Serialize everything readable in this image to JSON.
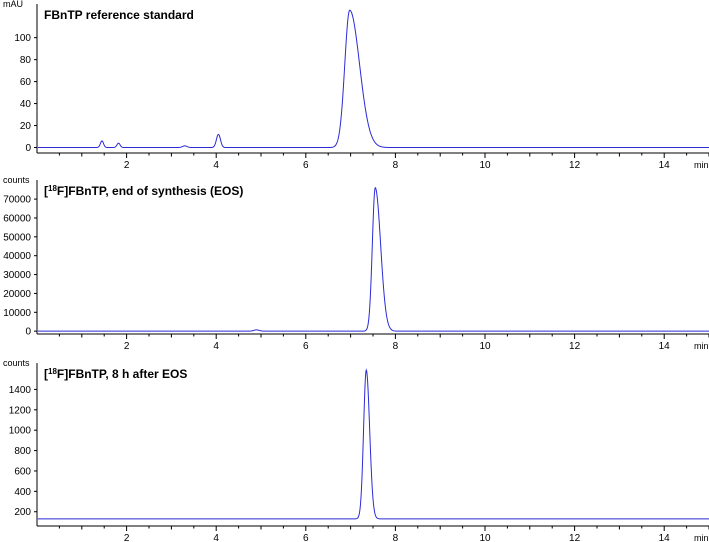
{
  "chart_data": [
    {
      "type": "line",
      "title": "FBnTP reference standard",
      "title_sup": "",
      "title_rest": "",
      "ylabel": "mAU",
      "xlabel": "min",
      "xlim": [
        0,
        15
      ],
      "ylim": [
        -5,
        127
      ],
      "xticks": [
        2,
        4,
        6,
        8,
        10,
        12,
        14
      ],
      "yticks": [
        0,
        20,
        40,
        60,
        80,
        100
      ],
      "grid": false,
      "color": "#2b2bd6",
      "baseline": 0,
      "peaks": [
        {
          "rt": 1.45,
          "height": 6,
          "width": 0.035
        },
        {
          "rt": 1.82,
          "height": 4,
          "width": 0.035
        },
        {
          "rt": 3.3,
          "height": 1.5,
          "width": 0.05
        },
        {
          "rt": 4.05,
          "height": 12,
          "width": 0.045
        },
        {
          "rt": 6.98,
          "height": 125,
          "width": 0.11,
          "tail": 0.22
        }
      ]
    },
    {
      "type": "line",
      "title": "[",
      "title_sup": "18",
      "title_rest": "F]FBnTP, end of synthesis (EOS)",
      "ylabel": "counts",
      "xlabel": "min",
      "xlim": [
        0,
        15
      ],
      "ylim": [
        -1500,
        78000
      ],
      "xticks": [
        2,
        4,
        6,
        8,
        10,
        12,
        14
      ],
      "yticks": [
        0,
        10000,
        20000,
        30000,
        40000,
        50000,
        60000,
        70000
      ],
      "grid": false,
      "color": "#2b2bd6",
      "baseline": 0,
      "peaks": [
        {
          "rt": 4.9,
          "height": 700,
          "width": 0.06
        },
        {
          "rt": 7.55,
          "height": 76000,
          "width": 0.065,
          "tail": 0.12
        }
      ]
    },
    {
      "type": "line",
      "title": "[",
      "title_sup": "18",
      "title_rest": "F]FBnTP, 8 h after EOS",
      "ylabel": "counts",
      "xlabel": "min",
      "xlim": [
        0,
        15
      ],
      "ylim": [
        60,
        1620
      ],
      "xticks": [
        2,
        4,
        6,
        8,
        10,
        12,
        14
      ],
      "yticks": [
        200,
        400,
        600,
        800,
        1000,
        1200,
        1400
      ],
      "grid": false,
      "color": "#2b2bd6",
      "baseline": 130,
      "peaks": [
        {
          "rt": 7.35,
          "height": 1460,
          "width": 0.06,
          "tail": 0.075
        }
      ]
    }
  ]
}
